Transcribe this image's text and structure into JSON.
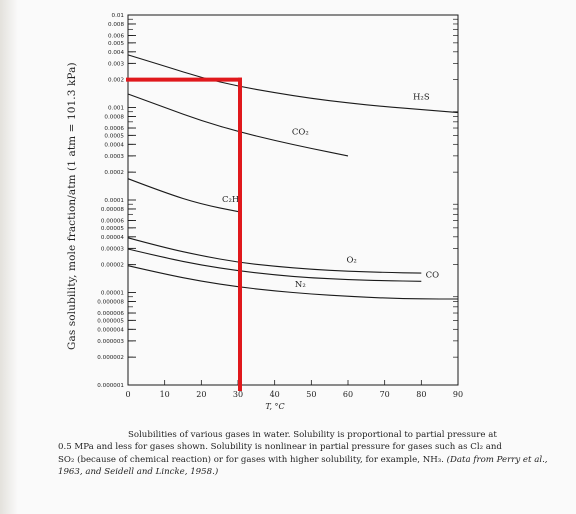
{
  "ylabel": "Gas solubility, mole fraction/atm (1 atm = 101.3 kPa)",
  "caption": {
    "line1": "Solubilities of various gases in water. Solubility is proportional to partial pressure at",
    "line2": "0.5 MPa and less for gases shown. Solubility is nonlinear in partial pressure for gases such as Cl₂ and",
    "line3": "SO₂ (because of chemical reaction) or for gases with higher solubility, for example, NH₃.",
    "note": "(Data from Perry et al., 1963, and Seidell and Lincke, 1958.)"
  },
  "chart_data": {
    "type": "line",
    "xlabel": "T, °C",
    "xlim": [
      0,
      90
    ],
    "x_ticks": [
      "0",
      "10",
      "20",
      "30",
      "40",
      "50",
      "60",
      "70",
      "80",
      "90"
    ],
    "yscale": "log",
    "ylim": [
      1e-06,
      0.01
    ],
    "y_ticks": [
      "0.01",
      "0.008",
      "0.006",
      "0.005",
      "0.004",
      "0.003",
      "0.002",
      "0.001",
      "0.0008",
      "0.0006",
      "0.0005",
      "0.0004",
      "0.0003",
      "0.0002",
      "0.0001",
      "0.00008",
      "0.00006",
      "0.00005",
      "0.00004",
      "0.00003",
      "0.00002",
      "0.00001",
      "0.000008",
      "0.000006",
      "0.000005",
      "0.000004",
      "0.000003",
      "0.000002",
      "0.000001"
    ],
    "series": [
      {
        "name": "H₂S",
        "x": [
          0,
          10,
          20,
          30,
          40,
          50,
          60,
          70,
          80,
          90
        ],
        "y": [
          0.0037,
          0.0028,
          0.0021,
          0.0017,
          0.00145,
          0.00125,
          0.00112,
          0.00102,
          0.00095,
          0.00088
        ]
      },
      {
        "name": "CO₂",
        "x": [
          0,
          10,
          20,
          30,
          40,
          50,
          60
        ],
        "y": [
          0.0014,
          0.001,
          0.00072,
          0.00055,
          0.00044,
          0.00036,
          0.0003
        ]
      },
      {
        "name": "C₂H",
        "x": [
          0,
          10,
          20,
          30
        ],
        "y": [
          0.00017,
          0.00012,
          9e-05,
          7.5e-05
        ]
      },
      {
        "name": "O₂",
        "x": [
          0,
          10,
          20,
          30,
          40,
          50,
          60,
          70,
          80
        ],
        "y": [
          3.9e-05,
          3.05e-05,
          2.5e-05,
          2.12e-05,
          1.92e-05,
          1.78e-05,
          1.7e-05,
          1.65e-05,
          1.62e-05
        ]
      },
      {
        "name": "CO",
        "x": [
          0,
          10,
          20,
          30,
          40,
          50,
          60,
          70,
          80
        ],
        "y": [
          2.95e-05,
          2.38e-05,
          1.98e-05,
          1.72e-05,
          1.55e-05,
          1.44e-05,
          1.38e-05,
          1.34e-05,
          1.32e-05
        ]
      },
      {
        "name": "N₂",
        "x": [
          0,
          10,
          20,
          30,
          40,
          50,
          60,
          70,
          80,
          90
        ],
        "y": [
          1.95e-05,
          1.58e-05,
          1.32e-05,
          1.15e-05,
          1.04e-05,
          9.6e-06,
          9.1e-06,
          8.7e-06,
          8.5e-06,
          8.5e-06
        ]
      }
    ],
    "annotation": {
      "type": "red marker lines",
      "color": "#e0181c",
      "x": 30,
      "y": 0.002
    }
  }
}
